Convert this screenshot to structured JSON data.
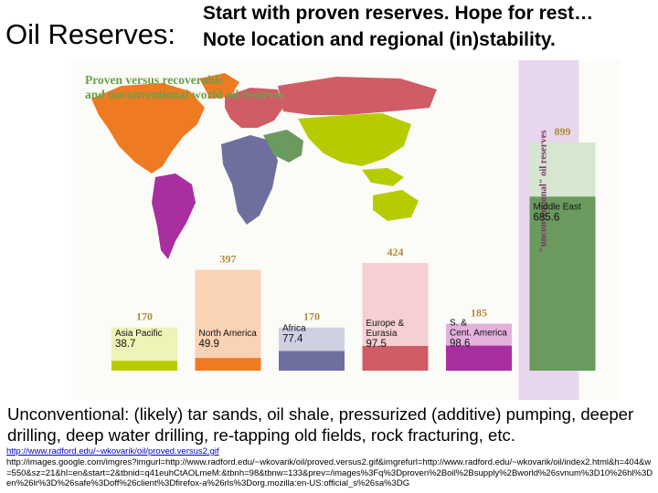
{
  "slide": {
    "title": "Oil Reserves:",
    "header_line1": "Start with proven reserves. Hope for rest…",
    "header_line2": "Note location and regional (in)stability.",
    "body_text": "Unconventional: (likely) tar sands, oil shale, pressurized (additive) pumping, deeper drilling, deep water drilling, re-tapping old fields, rock fracturing, etc.",
    "source_link1": "http://www.radford.edu/~wkovarik/oil/proved.versus2.gif",
    "source_link2": "http://images.google.com/imgres?imgurl=http://www.radford.edu/~wkovarik/oil/proved.versus2.gif&imgrefurl=http://www.radford.edu/~wkovarik/oil/index2.html&h=404&w=550&sz=21&hl=en&start=2&tbnid=q41euhCtAOLmeM:&tbnh=98&tbnw=133&prev=/images%3Fq%3Dproven%2Boil%2Bsupply%2Bworld%26svnum%3D10%26hl%3Den%26lr%3D%26safe%3Doff%26client%3Dfirefox-a%26rls%3Dorg.mozilla:en-US:official_s%26sa%3DG"
  },
  "chart_data": {
    "type": "bar",
    "title_line1": "Proven  versus recoverable",
    "title_line2": "and unconventional world oil reserves",
    "unconventional_label": "\"unconventional\" oil reserves",
    "categories": [
      {
        "name": "Asia Pacific",
        "proven_label": "38.7",
        "proven": 38.7,
        "recoverable": 170,
        "color_proven": "#b7cc00",
        "color_recoverable": "#eef3b8"
      },
      {
        "name": "North America",
        "proven_label": "49.9",
        "proven": 49.9,
        "recoverable": 397,
        "color_proven": "#ee7a22",
        "color_recoverable": "#fad2b4"
      },
      {
        "name": "Africa",
        "proven_label": "77.4",
        "proven": 77.4,
        "recoverable": 170,
        "color_proven": "#6e6f9f",
        "color_recoverable": "#cfd0e2"
      },
      {
        "name": "Europe & Eurasia",
        "proven_label": "97.5",
        "proven": 97.5,
        "recoverable": 424,
        "color_proven": "#d05c66",
        "color_recoverable": "#f5cfd2"
      },
      {
        "name": "S. & Cent. America",
        "proven_label": "98.6",
        "proven": 98.6,
        "recoverable": 185,
        "color_proven": "#a92ea0",
        "color_recoverable": "#e4b0dc"
      },
      {
        "name": "Middle East",
        "proven_label": "685.6",
        "proven": 685.6,
        "recoverable": 899,
        "color_proven": "#6a9a5e",
        "color_recoverable": "#d6e6d0"
      }
    ],
    "recoverable_label_color": "#b08a3a",
    "unconventional_band_color": "#e8d7ec",
    "ylim": [
      0,
      1000
    ],
    "map_colors": {
      "north_america": "#ee7a22",
      "south_america": "#a92ea0",
      "europe": "#d05c66",
      "africa": "#6e6f9f",
      "middle_east": "#6a9a5e",
      "asia": "#b7cc00",
      "australia": "#b7cc00"
    }
  }
}
